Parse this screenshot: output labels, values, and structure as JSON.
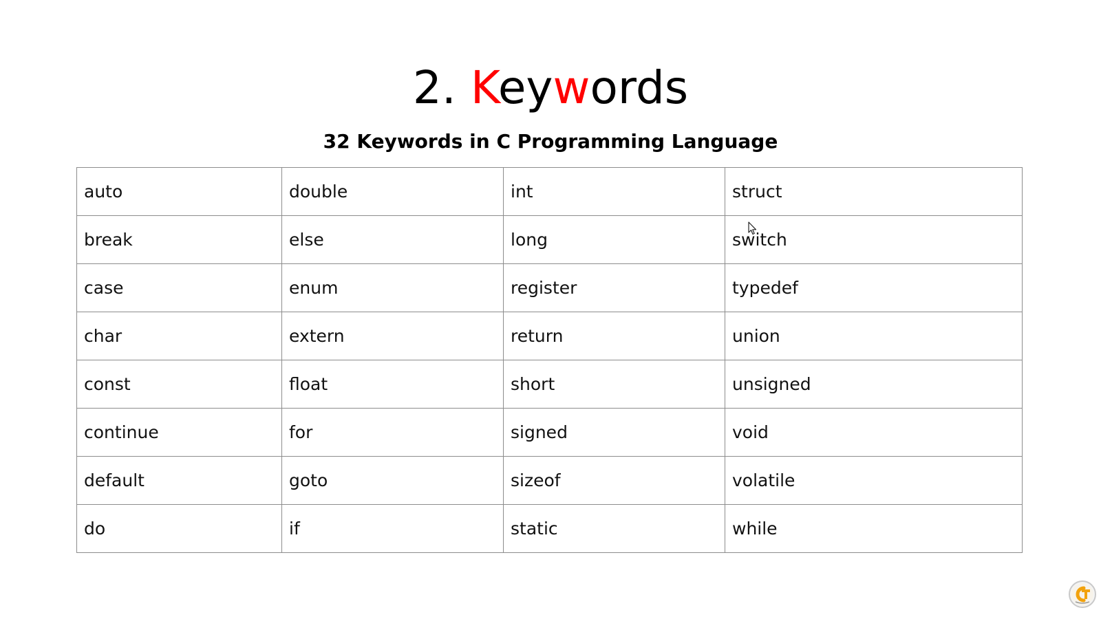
{
  "slide": {
    "title_prefix": "2. ",
    "title_parts": [
      "K",
      "ey",
      "w",
      "ords"
    ],
    "title_highlight_color": "#ff0000",
    "subtitle": "32 Keywords in C Programming Language"
  },
  "keywords_table": {
    "rows": [
      [
        "auto",
        "double",
        "int",
        "struct"
      ],
      [
        "break",
        "else",
        "long",
        "switch"
      ],
      [
        "case",
        "enum",
        "register",
        "typedef"
      ],
      [
        "char",
        "extern",
        "return",
        "union"
      ],
      [
        "const",
        "float",
        "short",
        "unsigned"
      ],
      [
        "continue",
        "for",
        "signed",
        "void"
      ],
      [
        "default",
        "goto",
        "sizeof",
        "volatile"
      ],
      [
        "do",
        "if",
        "static",
        "while"
      ]
    ]
  },
  "icons": {
    "cursor": "mouse-pointer-icon",
    "logo": "channel-logo-icon"
  }
}
